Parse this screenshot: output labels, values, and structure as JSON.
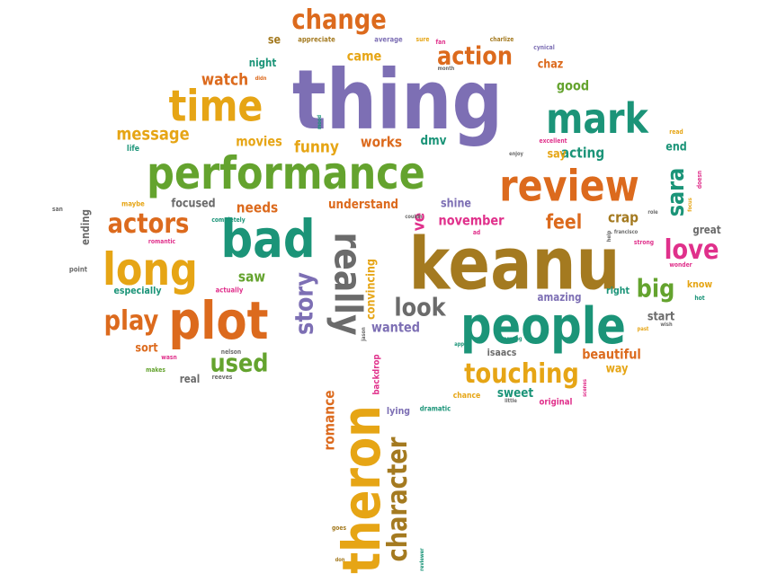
{
  "palette": {
    "purple": "#7d6fb4",
    "green": "#64a32e",
    "orange": "#dc6a1d",
    "teal": "#1b9478",
    "gold": "#e6a515",
    "pink": "#e0308b",
    "brown": "#a47a20",
    "gray": "#6b6b6b"
  },
  "words": [
    {
      "text": "thing",
      "color": "purple"
    },
    {
      "text": "keanu",
      "color": "brown"
    },
    {
      "text": "performance",
      "color": "green"
    },
    {
      "text": "people",
      "color": "teal"
    },
    {
      "text": "review",
      "color": "orange"
    },
    {
      "text": "plot",
      "color": "orange"
    },
    {
      "text": "bad",
      "color": "teal"
    },
    {
      "text": "long",
      "color": "gold"
    },
    {
      "text": "time",
      "color": "gold"
    },
    {
      "text": "mark",
      "color": "teal"
    },
    {
      "text": "theron",
      "color": "gold"
    },
    {
      "text": "really",
      "color": "gray"
    },
    {
      "text": "character",
      "color": "brown"
    },
    {
      "text": "change",
      "color": "orange"
    },
    {
      "text": "touching",
      "color": "gold"
    },
    {
      "text": "actors",
      "color": "orange"
    },
    {
      "text": "play",
      "color": "orange"
    },
    {
      "text": "love",
      "color": "pink"
    },
    {
      "text": "action",
      "color": "orange"
    },
    {
      "text": "story",
      "color": "purple"
    },
    {
      "text": "look",
      "color": "gray"
    },
    {
      "text": "big",
      "color": "green"
    },
    {
      "text": "used",
      "color": "green"
    },
    {
      "text": "sara",
      "color": "teal"
    },
    {
      "text": "feel",
      "color": "orange"
    },
    {
      "text": "message",
      "color": "gold"
    },
    {
      "text": "watch",
      "color": "orange"
    },
    {
      "text": "funny",
      "color": "gold"
    },
    {
      "text": "works",
      "color": "orange"
    },
    {
      "text": "movies",
      "color": "gold"
    },
    {
      "text": "november",
      "color": "pink"
    },
    {
      "text": "wanted",
      "color": "purple"
    },
    {
      "text": "understand",
      "color": "orange"
    },
    {
      "text": "crap",
      "color": "brown"
    },
    {
      "text": "acting",
      "color": "teal"
    },
    {
      "text": "saw",
      "color": "green"
    },
    {
      "text": "needs",
      "color": "orange"
    },
    {
      "text": "romance",
      "color": "orange"
    },
    {
      "text": "convincing",
      "color": "gold"
    },
    {
      "text": "beautiful",
      "color": "orange"
    },
    {
      "text": "sweet",
      "color": "teal"
    },
    {
      "text": "good",
      "color": "green"
    },
    {
      "text": "ve",
      "color": "pink"
    },
    {
      "text": "came",
      "color": "gold"
    },
    {
      "text": "dmv",
      "color": "teal"
    },
    {
      "text": "shine",
      "color": "purple"
    },
    {
      "text": "focused",
      "color": "gray"
    },
    {
      "text": "sort",
      "color": "orange"
    },
    {
      "text": "start",
      "color": "gray"
    },
    {
      "text": "way",
      "color": "gold"
    },
    {
      "text": "night",
      "color": "teal"
    },
    {
      "text": "chaz",
      "color": "orange"
    },
    {
      "text": "say",
      "color": "gold"
    },
    {
      "text": "end",
      "color": "teal"
    },
    {
      "text": "great",
      "color": "gray"
    },
    {
      "text": "ending",
      "color": "gray"
    },
    {
      "text": "especially",
      "color": "teal"
    },
    {
      "text": "real",
      "color": "gray"
    },
    {
      "text": "isaacs",
      "color": "gray"
    },
    {
      "text": "amazing",
      "color": "purple"
    },
    {
      "text": "right",
      "color": "teal"
    },
    {
      "text": "se",
      "color": "brown"
    },
    {
      "text": "know",
      "color": "gold"
    },
    {
      "text": "backdrop",
      "color": "pink"
    },
    {
      "text": "lying",
      "color": "purple"
    },
    {
      "text": "original",
      "color": "pink"
    },
    {
      "text": "dramatic",
      "color": "teal"
    },
    {
      "text": "chance",
      "color": "gold"
    },
    {
      "text": "life",
      "color": "teal"
    },
    {
      "text": "maybe",
      "color": "gold"
    },
    {
      "text": "san",
      "color": "gray"
    },
    {
      "text": "point",
      "color": "gray"
    },
    {
      "text": "romantic",
      "color": "pink"
    },
    {
      "text": "completely",
      "color": "teal"
    },
    {
      "text": "actually",
      "color": "pink"
    },
    {
      "text": "nelson",
      "color": "gray"
    },
    {
      "text": "wasn",
      "color": "pink"
    },
    {
      "text": "makes",
      "color": "green"
    },
    {
      "text": "reeves",
      "color": "gray"
    },
    {
      "text": "appreciate",
      "color": "brown"
    },
    {
      "text": "average",
      "color": "purple"
    },
    {
      "text": "sure",
      "color": "gold"
    },
    {
      "text": "fan",
      "color": "pink"
    },
    {
      "text": "charlize",
      "color": "brown"
    },
    {
      "text": "cynical",
      "color": "purple"
    },
    {
      "text": "month",
      "color": "gray"
    },
    {
      "text": "didn",
      "color": "orange"
    },
    {
      "text": "mood",
      "color": "teal"
    },
    {
      "text": "read",
      "color": "gold"
    },
    {
      "text": "excellent",
      "color": "pink"
    },
    {
      "text": "enjoy",
      "color": "gray"
    },
    {
      "text": "doesn",
      "color": "pink"
    },
    {
      "text": "focus",
      "color": "gold"
    },
    {
      "text": "couldn",
      "color": "gray"
    },
    {
      "text": "ad",
      "color": "pink"
    },
    {
      "text": "francisco",
      "color": "gray"
    },
    {
      "text": "role",
      "color": "gray"
    },
    {
      "text": "help",
      "color": "gray"
    },
    {
      "text": "strong",
      "color": "pink"
    },
    {
      "text": "wonder",
      "color": "pink"
    },
    {
      "text": "hot",
      "color": "teal"
    },
    {
      "text": "jason",
      "color": "gray"
    },
    {
      "text": "appeal",
      "color": "teal"
    },
    {
      "text": "charming",
      "color": "teal"
    },
    {
      "text": "past",
      "color": "gold"
    },
    {
      "text": "wish",
      "color": "gray"
    },
    {
      "text": "little",
      "color": "gray"
    },
    {
      "text": "scenes",
      "color": "pink"
    },
    {
      "text": "goes",
      "color": "brown"
    },
    {
      "text": "don",
      "color": "brown"
    },
    {
      "text": "reviewer",
      "color": "teal"
    }
  ]
}
